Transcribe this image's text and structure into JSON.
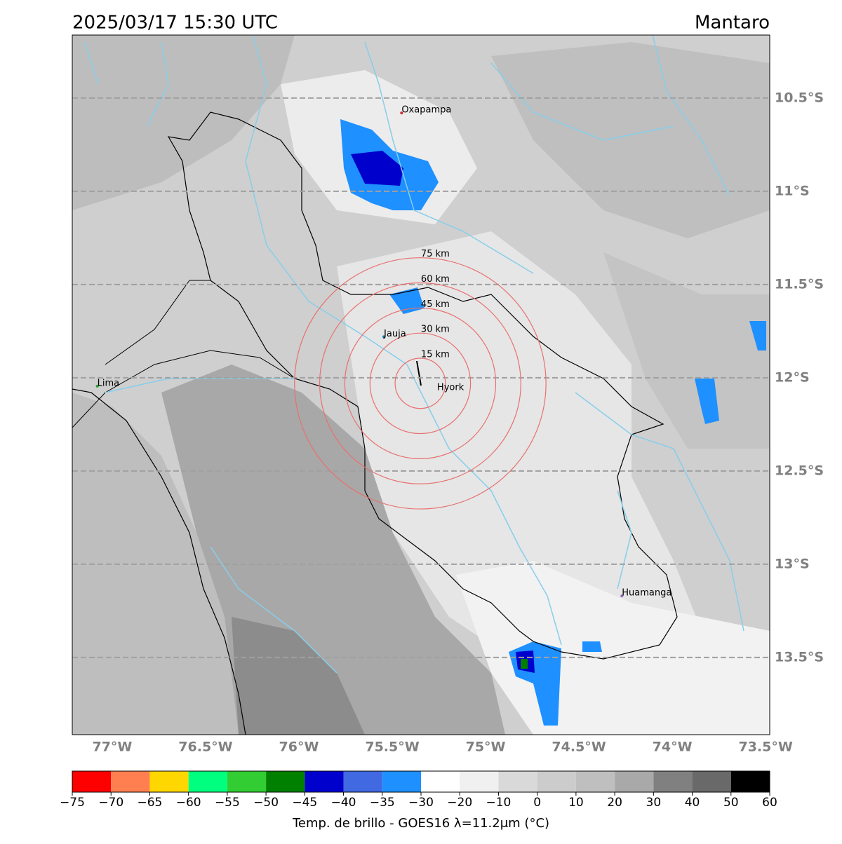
{
  "chart_data": {
    "type": "map",
    "title": "2025/03/17 15:30 UTC",
    "region": "Mantaro",
    "xlim": [
      -77.214,
      -73.478
    ],
    "ylim": [
      -13.914,
      -10.162
    ],
    "xticks": [
      {
        "value": -77,
        "label": "77°W"
      },
      {
        "value": -76.5,
        "label": "76.5°W"
      },
      {
        "value": -76,
        "label": "76°W"
      },
      {
        "value": -75.5,
        "label": "75.5°W"
      },
      {
        "value": -75,
        "label": "75°W"
      },
      {
        "value": -74.5,
        "label": "74.5°W"
      },
      {
        "value": -74,
        "label": "74°W"
      },
      {
        "value": -73.5,
        "label": "73.5°W"
      }
    ],
    "yticks": [
      {
        "value": -10.5,
        "label": "10.5°S"
      },
      {
        "value": -11,
        "label": "11°S"
      },
      {
        "value": -11.5,
        "label": "11.5°S"
      },
      {
        "value": -12,
        "label": "12°S"
      },
      {
        "value": -12.5,
        "label": "12.5°S"
      },
      {
        "value": -13,
        "label": "13°S"
      },
      {
        "value": -13.5,
        "label": "13.5°S"
      }
    ],
    "grid": true,
    "places": [
      {
        "name": "Oxapampa",
        "lon": -75.45,
        "lat": -10.58,
        "color": "#d62728"
      },
      {
        "name": "Jauja",
        "lon": -75.545,
        "lat": -11.78,
        "color": "#1f77b4"
      },
      {
        "name": "Lima",
        "lon": -77.08,
        "lat": -12.045,
        "color": "#2ca02c"
      },
      {
        "name": "Huamanga",
        "lon": -74.27,
        "lat": -13.17,
        "color": "#9467bd"
      }
    ],
    "center": {
      "name": "Hyork",
      "lon": -75.35,
      "lat": -12.03
    },
    "ring_color": "#e8706f",
    "rings": [
      {
        "value": 15,
        "label": "15 km"
      },
      {
        "value": 30,
        "label": "30 km"
      },
      {
        "value": 45,
        "label": "45 km"
      },
      {
        "value": 60,
        "label": "60 km"
      },
      {
        "value": 75,
        "label": "75 km"
      }
    ],
    "colorbar": {
      "label": "Temp. de brillo - GOES16 λ=11.2μm (°C)",
      "bounds": [
        {
          "value": -75,
          "label": "−75"
        },
        {
          "value": -70,
          "label": "−70"
        },
        {
          "value": -65,
          "label": "−65"
        },
        {
          "value": -60,
          "label": "−60"
        },
        {
          "value": -55,
          "label": "−55"
        },
        {
          "value": -50,
          "label": "−50"
        },
        {
          "value": -45,
          "label": "−45"
        },
        {
          "value": -40,
          "label": "−40"
        },
        {
          "value": -35,
          "label": "−35"
        },
        {
          "value": -30,
          "label": "−30"
        },
        {
          "value": -20,
          "label": "−20"
        },
        {
          "value": -10,
          "label": "−10"
        },
        0,
        10,
        20,
        30,
        40,
        50,
        60
      ],
      "colors": [
        "#ff0000",
        "#ff7f50",
        "#ffd700",
        "#00ff7f",
        "#32cd32",
        "#008000",
        "#0000cd",
        "#4169e1",
        "#1e90ff",
        "#ffffff",
        "#f0f0f0",
        "#d9d9d9",
        "#cccccc",
        "#bfbfbf",
        "#a9a9a9",
        "#808080",
        "#696969",
        "#000000"
      ]
    }
  }
}
